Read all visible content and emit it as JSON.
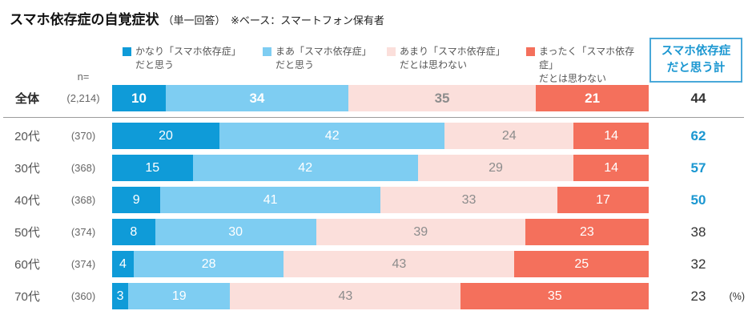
{
  "title": {
    "main": "スマホ依存症の自覚症状",
    "sub": "（単一回答）　※ベース：スマートフォン保有者"
  },
  "n_label": "n=",
  "total_box": {
    "line1": "スマホ依存症",
    "line2": "だと思う計",
    "text_color": "#1b97d1",
    "border_color": "#49a8d9"
  },
  "legend": {
    "items": [
      {
        "line1": "かなり「スマホ依存症」",
        "line2": "だと思う",
        "color": "#0f9bd8"
      },
      {
        "line1": "まあ「スマホ依存症」",
        "line2": "だと思う",
        "color": "#7ecdf2"
      },
      {
        "line1": "あまり「スマホ依存症」",
        "line2": "だとは思わない",
        "color": "#fbdfdb"
      },
      {
        "line1": "まったく「スマホ依存症」",
        "line2": "だとは思わない",
        "color": "#f4705c"
      }
    ]
  },
  "chart_data": {
    "type": "bar",
    "stacked": true,
    "orientation": "horizontal",
    "title": "スマホ依存症の自覚症状（単一回答）※ベース：スマートフォン保有者",
    "xlim": [
      0,
      100
    ],
    "value_unit": "(%)",
    "categories": [
      "全体",
      "20代",
      "30代",
      "40代",
      "50代",
      "60代",
      "70代"
    ],
    "n_values": [
      "(2,214)",
      "(370)",
      "(368)",
      "(368)",
      "(374)",
      "(374)",
      "(360)"
    ],
    "series": [
      {
        "name": "かなり「スマホ依存症」だと思う",
        "color": "#0f9bd8",
        "values": [
          10,
          20,
          15,
          9,
          8,
          4,
          3
        ]
      },
      {
        "name": "まあ「スマホ依存症」だと思う",
        "color": "#7ecdf2",
        "values": [
          34,
          42,
          42,
          41,
          30,
          28,
          19
        ]
      },
      {
        "name": "あまり「スマホ依存症」だとは思わない",
        "color": "#fbdfdb",
        "values": [
          35,
          24,
          29,
          33,
          39,
          43,
          43
        ]
      },
      {
        "name": "まったく「スマホ依存症」だとは思わない",
        "color": "#f4705c",
        "values": [
          21,
          14,
          14,
          17,
          23,
          25,
          35
        ]
      }
    ],
    "value_text_colors": [
      "#ffffff",
      "#ffffff",
      "#8c8c8c",
      "#ffffff"
    ],
    "totals": {
      "label": "スマホ依存症だと思う計",
      "values": [
        44,
        62,
        57,
        50,
        38,
        32,
        23
      ],
      "highlighted": [
        false,
        true,
        true,
        true,
        false,
        false,
        false
      ]
    }
  }
}
